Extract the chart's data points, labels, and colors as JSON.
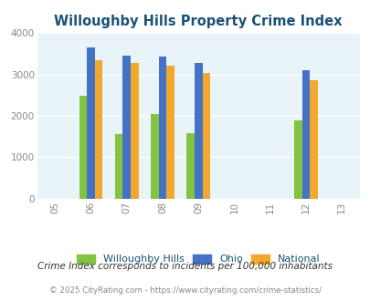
{
  "title": "Willoughby Hills Property Crime Index",
  "title_color": "#1a5276",
  "years": [
    2005,
    2006,
    2007,
    2008,
    2009,
    2010,
    2011,
    2012,
    2013
  ],
  "bar_years": [
    2006,
    2007,
    2008,
    2009,
    2012
  ],
  "willoughby": [
    2490,
    1560,
    2040,
    1580,
    1880
  ],
  "ohio": [
    3650,
    3450,
    3430,
    3280,
    3100
  ],
  "national": [
    3350,
    3280,
    3210,
    3040,
    2850
  ],
  "bar_width": 0.22,
  "colors": {
    "willoughby": "#82c341",
    "ohio": "#4472c4",
    "national": "#f0a830"
  },
  "bg_color": "#e8f4f8",
  "ylim": [
    0,
    4000
  ],
  "yticks": [
    0,
    1000,
    2000,
    3000,
    4000
  ],
  "legend_labels": [
    "Willoughby Hills",
    "Ohio",
    "National"
  ],
  "footnote1": "Crime Index corresponds to incidents per 100,000 inhabitants",
  "footnote2": "© 2025 CityRating.com - https://www.cityrating.com/crime-statistics/",
  "footnote_color": "#1a5276"
}
